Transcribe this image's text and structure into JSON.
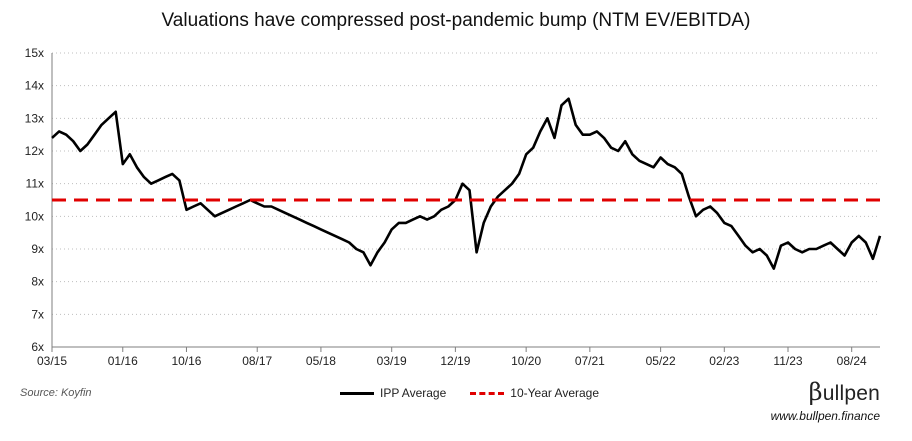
{
  "chart_data": {
    "type": "line",
    "title": "Valuations have compressed post-pandemic bump (NTM EV/EBITDA)",
    "ylim": [
      6,
      15
    ],
    "y_ticks": [
      "6x",
      "7x",
      "8x",
      "9x",
      "10x",
      "11x",
      "12x",
      "13x",
      "14x",
      "15x"
    ],
    "x_ticks": [
      "03/15",
      "01/16",
      "10/16",
      "08/17",
      "05/18",
      "03/19",
      "12/19",
      "10/20",
      "07/21",
      "05/22",
      "02/23",
      "11/23",
      "08/24"
    ],
    "x_range": [
      "2015-03",
      "2024-12"
    ],
    "grid": true,
    "legend_position": "bottom",
    "series": [
      {
        "name": "IPP Average",
        "color": "#000000",
        "style": "solid",
        "points": [
          [
            "2015-03",
            12.4
          ],
          [
            "2015-04",
            12.6
          ],
          [
            "2015-05",
            12.5
          ],
          [
            "2015-06",
            12.3
          ],
          [
            "2015-07",
            12.0
          ],
          [
            "2015-08",
            12.2
          ],
          [
            "2015-09",
            12.5
          ],
          [
            "2015-10",
            12.8
          ],
          [
            "2015-11",
            13.0
          ],
          [
            "2015-12",
            13.2
          ],
          [
            "2016-01",
            11.6
          ],
          [
            "2016-02",
            11.9
          ],
          [
            "2016-03",
            11.5
          ],
          [
            "2016-04",
            11.2
          ],
          [
            "2016-05",
            11.0
          ],
          [
            "2016-06",
            11.1
          ],
          [
            "2016-07",
            11.2
          ],
          [
            "2016-08",
            11.3
          ],
          [
            "2016-09",
            11.1
          ],
          [
            "2016-10",
            10.2
          ],
          [
            "2016-11",
            10.3
          ],
          [
            "2016-12",
            10.4
          ],
          [
            "2017-01",
            10.2
          ],
          [
            "2017-02",
            10.0
          ],
          [
            "2017-03",
            10.1
          ],
          [
            "2017-04",
            10.2
          ],
          [
            "2017-05",
            10.3
          ],
          [
            "2017-06",
            10.4
          ],
          [
            "2017-07",
            10.5
          ],
          [
            "2017-08",
            10.4
          ],
          [
            "2017-09",
            10.3
          ],
          [
            "2017-10",
            10.3
          ],
          [
            "2017-11",
            10.2
          ],
          [
            "2017-12",
            10.1
          ],
          [
            "2018-01",
            10.0
          ],
          [
            "2018-02",
            9.9
          ],
          [
            "2018-03",
            9.8
          ],
          [
            "2018-04",
            9.7
          ],
          [
            "2018-05",
            9.6
          ],
          [
            "2018-06",
            9.5
          ],
          [
            "2018-07",
            9.4
          ],
          [
            "2018-08",
            9.3
          ],
          [
            "2018-09",
            9.2
          ],
          [
            "2018-10",
            9.0
          ],
          [
            "2018-11",
            8.9
          ],
          [
            "2018-12",
            8.5
          ],
          [
            "2019-01",
            8.9
          ],
          [
            "2019-02",
            9.2
          ],
          [
            "2019-03",
            9.6
          ],
          [
            "2019-04",
            9.8
          ],
          [
            "2019-05",
            9.8
          ],
          [
            "2019-06",
            9.9
          ],
          [
            "2019-07",
            10.0
          ],
          [
            "2019-08",
            9.9
          ],
          [
            "2019-09",
            10.0
          ],
          [
            "2019-10",
            10.2
          ],
          [
            "2019-11",
            10.3
          ],
          [
            "2019-12",
            10.5
          ],
          [
            "2020-01",
            11.0
          ],
          [
            "2020-02",
            10.8
          ],
          [
            "2020-03",
            8.9
          ],
          [
            "2020-04",
            9.8
          ],
          [
            "2020-05",
            10.3
          ],
          [
            "2020-06",
            10.6
          ],
          [
            "2020-07",
            10.8
          ],
          [
            "2020-08",
            11.0
          ],
          [
            "2020-09",
            11.3
          ],
          [
            "2020-10",
            11.9
          ],
          [
            "2020-11",
            12.1
          ],
          [
            "2020-12",
            12.6
          ],
          [
            "2021-01",
            13.0
          ],
          [
            "2021-02",
            12.4
          ],
          [
            "2021-03",
            13.4
          ],
          [
            "2021-04",
            13.6
          ],
          [
            "2021-05",
            12.8
          ],
          [
            "2021-06",
            12.5
          ],
          [
            "2021-07",
            12.5
          ],
          [
            "2021-08",
            12.6
          ],
          [
            "2021-09",
            12.4
          ],
          [
            "2021-10",
            12.1
          ],
          [
            "2021-11",
            12.0
          ],
          [
            "2021-12",
            12.3
          ],
          [
            "2022-01",
            11.9
          ],
          [
            "2022-02",
            11.7
          ],
          [
            "2022-03",
            11.6
          ],
          [
            "2022-04",
            11.5
          ],
          [
            "2022-05",
            11.8
          ],
          [
            "2022-06",
            11.6
          ],
          [
            "2022-07",
            11.5
          ],
          [
            "2022-08",
            11.3
          ],
          [
            "2022-09",
            10.6
          ],
          [
            "2022-10",
            10.0
          ],
          [
            "2022-11",
            10.2
          ],
          [
            "2022-12",
            10.3
          ],
          [
            "2023-01",
            10.1
          ],
          [
            "2023-02",
            9.8
          ],
          [
            "2023-03",
            9.7
          ],
          [
            "2023-04",
            9.4
          ],
          [
            "2023-05",
            9.1
          ],
          [
            "2023-06",
            8.9
          ],
          [
            "2023-07",
            9.0
          ],
          [
            "2023-08",
            8.8
          ],
          [
            "2023-09",
            8.4
          ],
          [
            "2023-10",
            9.1
          ],
          [
            "2023-11",
            9.2
          ],
          [
            "2023-12",
            9.0
          ],
          [
            "2024-01",
            8.9
          ],
          [
            "2024-02",
            9.0
          ],
          [
            "2024-03",
            9.0
          ],
          [
            "2024-04",
            9.1
          ],
          [
            "2024-05",
            9.2
          ],
          [
            "2024-06",
            9.0
          ],
          [
            "2024-07",
            8.8
          ],
          [
            "2024-08",
            9.2
          ],
          [
            "2024-09",
            9.4
          ],
          [
            "2024-10",
            9.2
          ],
          [
            "2024-11",
            8.7
          ],
          [
            "2024-12",
            9.4
          ]
        ]
      },
      {
        "name": "10-Year Average",
        "color": "#e00000",
        "style": "dashed",
        "value": 10.5
      }
    ]
  },
  "footer": {
    "source": "Source: Koyfin",
    "brand_symbol": "β",
    "brand_name": "ullpen",
    "url": "www.bullpen.finance"
  }
}
